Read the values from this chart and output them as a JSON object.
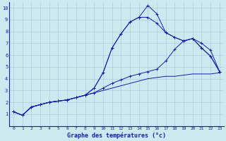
{
  "background_color": "#cde9f0",
  "grid_color": "#aaccdd",
  "line_color": "#1a1aaa",
  "title": "Graphe des températures (°c)",
  "xlim": [
    -0.5,
    23.5
  ],
  "ylim": [
    0,
    10.5
  ],
  "xticks": [
    0,
    1,
    2,
    3,
    4,
    5,
    6,
    7,
    8,
    9,
    10,
    11,
    12,
    13,
    14,
    15,
    16,
    17,
    18,
    19,
    20,
    21,
    22,
    23
  ],
  "yticks": [
    1,
    2,
    3,
    4,
    5,
    6,
    7,
    8,
    9,
    10
  ],
  "series": [
    {
      "x": [
        0,
        1,
        2,
        3,
        4,
        5,
        6,
        7,
        8,
        9,
        10,
        11,
        12,
        13,
        14,
        15,
        16,
        17,
        18,
        19,
        20,
        21,
        22,
        23
      ],
      "y": [
        1.2,
        0.9,
        1.6,
        1.8,
        2.0,
        2.1,
        2.2,
        2.4,
        2.6,
        3.2,
        4.5,
        6.6,
        7.8,
        8.8,
        9.2,
        10.2,
        9.5,
        7.9,
        7.5,
        7.2,
        7.4,
        6.6,
        5.9,
        4.6
      ],
      "marker": true
    },
    {
      "x": [
        0,
        1,
        2,
        3,
        4,
        5,
        6,
        7,
        8,
        9,
        10,
        11,
        12,
        13,
        14,
        15,
        16,
        17,
        18,
        19,
        20,
        21,
        22,
        23
      ],
      "y": [
        1.2,
        0.9,
        1.6,
        1.8,
        2.0,
        2.1,
        2.2,
        2.4,
        2.6,
        3.2,
        4.5,
        6.6,
        7.8,
        8.8,
        9.2,
        9.2,
        8.7,
        7.9,
        7.5,
        7.2,
        7.4,
        6.6,
        5.9,
        4.6
      ],
      "marker": true
    },
    {
      "x": [
        0,
        1,
        2,
        3,
        4,
        5,
        6,
        7,
        8,
        9,
        10,
        11,
        12,
        13,
        14,
        15,
        16,
        17,
        18,
        19,
        20,
        21,
        22,
        23
      ],
      "y": [
        1.2,
        0.9,
        1.6,
        1.8,
        2.0,
        2.1,
        2.2,
        2.4,
        2.6,
        2.8,
        3.2,
        3.6,
        3.9,
        4.2,
        4.4,
        4.6,
        4.8,
        5.5,
        6.5,
        7.2,
        7.4,
        7.0,
        6.4,
        4.6
      ],
      "marker": true
    },
    {
      "x": [
        0,
        1,
        2,
        3,
        4,
        5,
        6,
        7,
        8,
        9,
        10,
        11,
        12,
        13,
        14,
        15,
        16,
        17,
        18,
        19,
        20,
        21,
        22,
        23
      ],
      "y": [
        1.2,
        0.9,
        1.6,
        1.8,
        2.0,
        2.1,
        2.2,
        2.4,
        2.6,
        2.8,
        3.0,
        3.2,
        3.4,
        3.6,
        3.8,
        4.0,
        4.1,
        4.2,
        4.2,
        4.3,
        4.4,
        4.4,
        4.4,
        4.5
      ],
      "marker": false
    }
  ]
}
